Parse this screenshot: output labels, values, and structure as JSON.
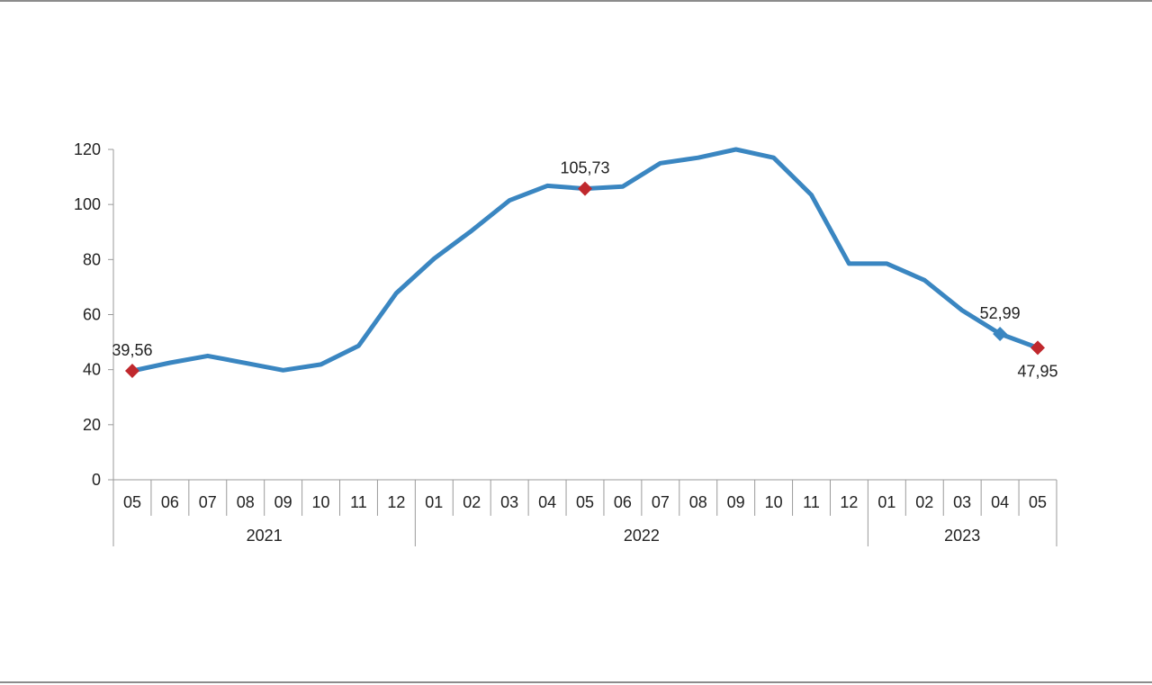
{
  "chart_data": {
    "type": "line",
    "title": "",
    "xlabel": "",
    "ylabel": "",
    "ylim": [
      0,
      120
    ],
    "y_ticks": [
      "0",
      "20",
      "40",
      "60",
      "80",
      "100",
      "120"
    ],
    "grid": false,
    "legend": "none",
    "categories": [
      "05",
      "06",
      "07",
      "08",
      "09",
      "10",
      "11",
      "12",
      "01",
      "02",
      "03",
      "04",
      "05",
      "06",
      "07",
      "08",
      "09",
      "10",
      "11",
      "12",
      "01",
      "02",
      "03",
      "04",
      "05"
    ],
    "year_groups": [
      {
        "label": "2021",
        "start": 0,
        "count": 8
      },
      {
        "label": "2022",
        "start": 8,
        "count": 12
      },
      {
        "label": "2023",
        "start": 20,
        "count": 5
      }
    ],
    "series": [
      {
        "values": [
          39.56,
          42.5,
          45.0,
          42.4,
          39.8,
          41.9,
          48.7,
          67.8,
          80.3,
          90.5,
          101.5,
          106.8,
          105.73,
          106.5,
          115.0,
          117.0,
          120.0,
          117.0,
          103.5,
          78.5,
          78.5,
          72.5,
          61.5,
          52.99,
          47.95
        ],
        "color": "#3a86c1"
      }
    ],
    "markers": [
      {
        "index": 0,
        "label": "39,56",
        "color": "#c0282d",
        "label_pos": "above"
      },
      {
        "index": 12,
        "label": "105,73",
        "color": "#c0282d",
        "label_pos": "above"
      },
      {
        "index": 23,
        "label": "52,99",
        "color": "#3a86c1",
        "label_pos": "above"
      },
      {
        "index": 24,
        "label": "47,95",
        "color": "#c0282d",
        "label_pos": "below"
      }
    ]
  }
}
